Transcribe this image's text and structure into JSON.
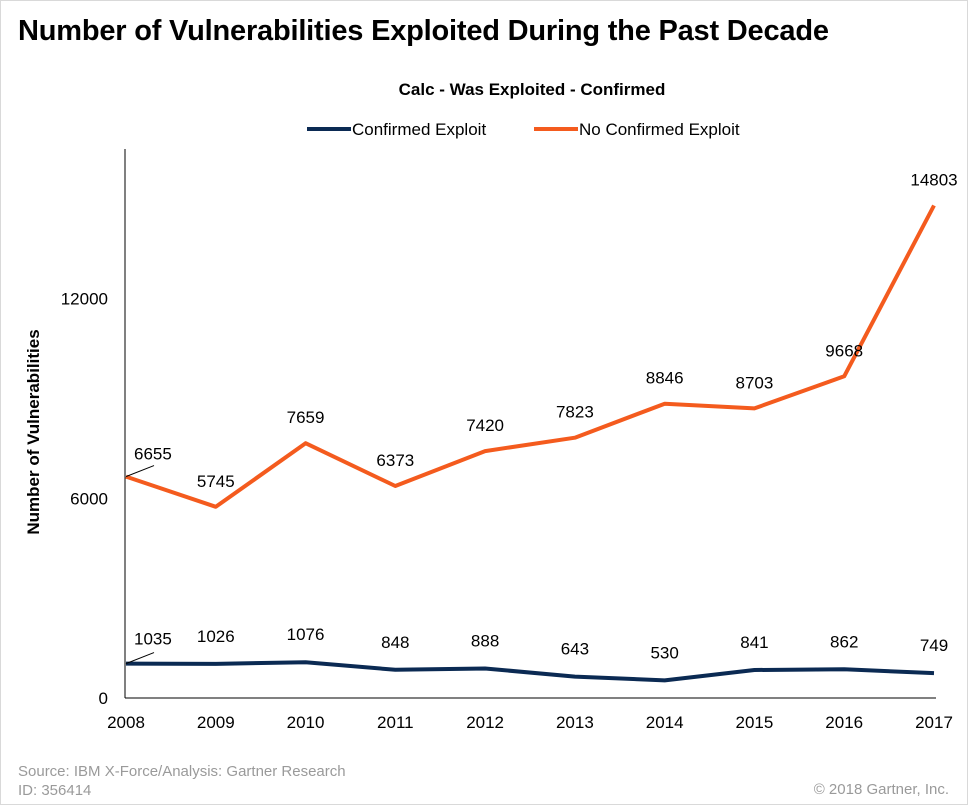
{
  "title": "Number of Vulnerabilities Exploited During the Past Decade",
  "footer": {
    "source": "Source: IBM X-Force/Analysis: Gartner Research",
    "id": "ID: 356414",
    "copyright": "© 2018 Gartner, Inc."
  },
  "chart_data": {
    "type": "line",
    "title": "Calc - Was Exploited - Confirmed",
    "xlabel": "",
    "ylabel": "Number of Vulnerabilities",
    "x": [
      "2008",
      "2009",
      "2010",
      "2011",
      "2012",
      "2013",
      "2014",
      "2015",
      "2016",
      "2017"
    ],
    "ylim": [
      0,
      16500
    ],
    "yticks": [
      0,
      6000,
      12000
    ],
    "grid": false,
    "legend": "top-center",
    "series": [
      {
        "name": "Confirmed Exploit",
        "color": "#0b2a53",
        "values": [
          1035,
          1026,
          1076,
          848,
          888,
          643,
          530,
          841,
          862,
          749
        ]
      },
      {
        "name": "No Confirmed Exploit",
        "color": "#f45b1e",
        "values": [
          6655,
          5745,
          7659,
          6373,
          7420,
          7823,
          8846,
          8703,
          9668,
          14803
        ]
      }
    ]
  }
}
